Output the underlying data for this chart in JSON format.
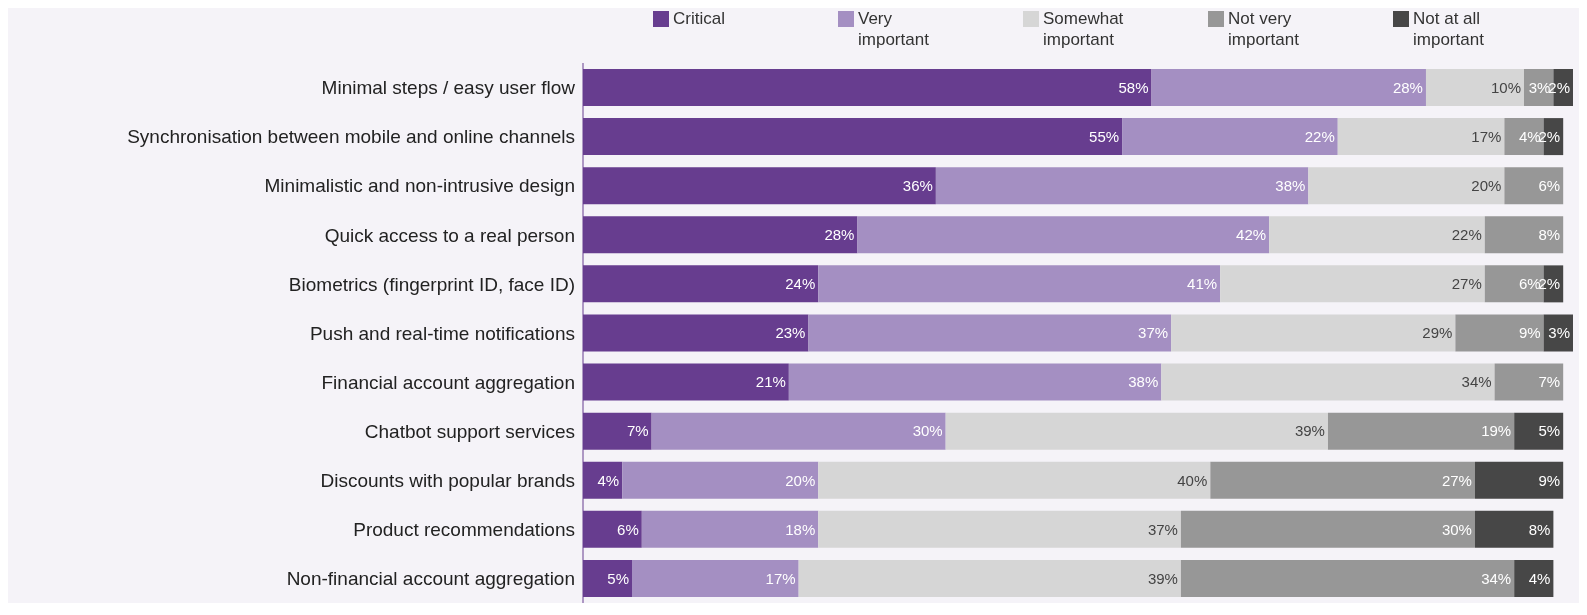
{
  "chart_data": {
    "type": "bar",
    "orientation": "horizontal",
    "stacked": true,
    "legend": "top",
    "categories": [
      "Minimal steps / easy user flow",
      "Synchronisation between mobile and online channels",
      "Minimalistic and non-intrusive design",
      "Quick access to a real person",
      "Biometrics (fingerprint ID, face ID)",
      "Push and real-time notifications",
      "Financial account aggregation",
      "Chatbot support services",
      "Discounts with popular brands",
      "Product recommendations",
      "Non-financial account aggregation"
    ],
    "series": [
      {
        "name": "Critical",
        "color": "#673d8f",
        "values": [
          58,
          55,
          36,
          28,
          24,
          23,
          21,
          7,
          4,
          6,
          5
        ],
        "value_labels": [
          "58%",
          "55%",
          "36%",
          "28%",
          "24%",
          "23%",
          "21%",
          "7%",
          "4%",
          "6%",
          "5%"
        ]
      },
      {
        "name": "Very important",
        "color": "#a48fc2",
        "values": [
          28,
          22,
          38,
          42,
          41,
          37,
          38,
          30,
          20,
          18,
          17
        ],
        "value_labels": [
          "28%",
          "22%",
          "38%",
          "42%",
          "41%",
          "37%",
          "38%",
          "30%",
          "20%",
          "18%",
          "17%"
        ]
      },
      {
        "name": "Somewhat important",
        "color": "#d6d6d6",
        "values": [
          10,
          17,
          20,
          22,
          27,
          29,
          34,
          39,
          40,
          37,
          39
        ],
        "value_labels": [
          "10%",
          "17%",
          "20%",
          "22%",
          "27%",
          "29%",
          "34%",
          "39%",
          "40%",
          "37%",
          "39%"
        ]
      },
      {
        "name": "Not very important",
        "color": "#979797",
        "values": [
          3,
          4,
          6,
          8,
          6,
          9,
          7,
          19,
          27,
          30,
          34
        ],
        "value_labels": [
          "3%",
          "4%",
          "6%",
          "8%",
          "6%",
          "9%",
          "7%",
          "19%",
          "27%",
          "30%",
          "34%"
        ]
      },
      {
        "name": "Not at all important",
        "color": "#474747",
        "values": [
          2,
          2,
          null,
          null,
          2,
          3,
          null,
          5,
          9,
          8,
          4
        ],
        "value_labels": [
          "2%",
          "2%",
          null,
          null,
          "2%",
          "3%",
          null,
          "5%",
          "9%",
          "8%",
          "4%"
        ]
      }
    ]
  }
}
